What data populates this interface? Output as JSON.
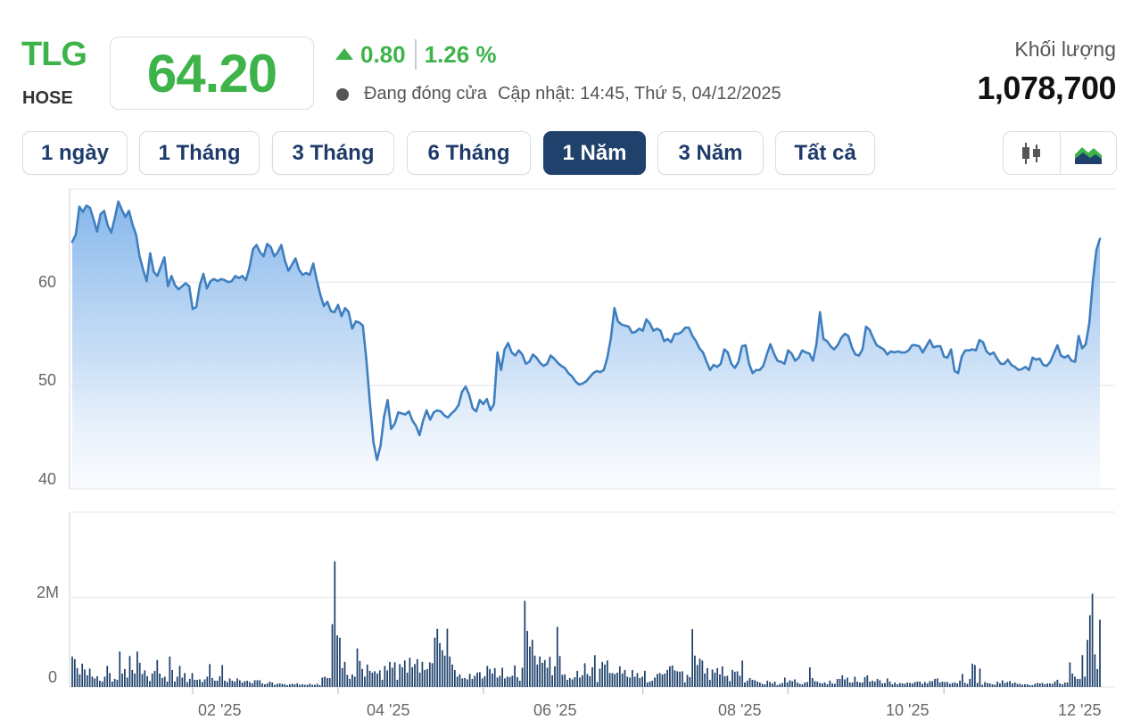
{
  "header": {
    "ticker": "TLG",
    "exchange": "HOSE",
    "price": "64.20",
    "change": "0.80",
    "change_pct": "1.26 %",
    "status": "Đang đóng cửa",
    "updated": "Cập nhật: 14:45, Thứ 5, 04/12/2025",
    "volume_label": "Khối lượng",
    "volume_value": "1,078,700"
  },
  "ranges": [
    "1 ngày",
    "1 Tháng",
    "3 Tháng",
    "6 Tháng",
    "1 Năm",
    "3 Năm",
    "Tất cả"
  ],
  "active_range": "1 Năm",
  "chart_type_toggle": [
    {
      "icon": "candlestick-icon",
      "active": false
    },
    {
      "icon": "area-chart-icon",
      "active": true
    }
  ],
  "colors": {
    "up": "#3db34a",
    "line": "#3f7fbf",
    "area_top": "#7fb3ea",
    "volume_bar": "#1f416c",
    "active_button": "#1f416c"
  },
  "chart_data": [
    {
      "type": "area",
      "title": "",
      "ylim": [
        40,
        69
      ],
      "yticks": [
        "60",
        "50",
        "40"
      ],
      "ytick_values": [
        60,
        50,
        40
      ],
      "grid": true,
      "xtick_labels": [
        "02 '25",
        "04 '25",
        "06 '25",
        "08 '25",
        "10 '25",
        "12 '25"
      ],
      "xtick_indices": [
        34,
        75,
        116,
        161,
        202,
        246
      ],
      "series": [
        {
          "values": [
            63.9,
            64.6,
            67.3,
            66.8,
            67.4,
            67.2,
            66.1,
            64.9,
            66.6,
            66.9,
            65.5,
            64.8,
            66.2,
            67.8,
            67.0,
            66.3,
            66.9,
            65.6,
            64.6,
            62.5,
            61.2,
            60.1,
            62.8,
            61.0,
            60.6,
            61.5,
            62.4,
            59.6,
            60.6,
            59.7,
            59.3,
            59.6,
            59.9,
            59.6,
            57.4,
            57.6,
            59.7,
            60.8,
            59.4,
            60.1,
            60.3,
            60.1,
            60.3,
            60.2,
            60.0,
            60.1,
            60.6,
            60.4,
            60.6,
            60.2,
            61.4,
            63.2,
            63.6,
            62.9,
            62.5,
            63.7,
            63.4,
            62.5,
            62.9,
            63.6,
            62.1,
            61.1,
            61.7,
            62.3,
            61.2,
            60.7,
            60.9,
            60.7,
            61.8,
            60.2,
            58.8,
            57.7,
            58.1,
            57.2,
            57.1,
            57.8,
            56.7,
            57.5,
            57.1,
            55.5,
            56.2,
            56.1,
            55.8,
            52.5,
            48.3,
            44.5,
            42.8,
            44.2,
            47.0,
            48.6,
            45.8,
            46.3,
            47.4,
            47.3,
            47.2,
            47.5,
            46.6,
            46.1,
            45.2,
            46.6,
            47.6,
            46.7,
            47.4,
            47.6,
            47.5,
            47.1,
            46.9,
            47.3,
            47.6,
            48.1,
            49.4,
            49.9,
            49.1,
            47.8,
            47.5,
            48.6,
            48.2,
            48.7,
            47.6,
            48.2,
            53.2,
            51.5,
            53.5,
            54.1,
            53.2,
            52.9,
            53.4,
            53.0,
            52.1,
            52.3,
            53.0,
            52.7,
            52.2,
            51.9,
            52.1,
            52.9,
            52.6,
            52.2,
            51.9,
            51.7,
            51.2,
            50.9,
            50.4,
            50.1,
            50.2,
            50.4,
            50.8,
            51.2,
            51.4,
            51.3,
            51.5,
            52.7,
            54.6,
            57.5,
            56.2,
            55.9,
            55.8,
            55.7,
            55.1,
            55.2,
            55.5,
            55.3,
            56.4,
            56.0,
            55.3,
            55.5,
            55.3,
            54.3,
            54.5,
            54.2,
            55.0,
            55.0,
            55.2,
            55.6,
            55.6,
            54.8,
            54.3,
            53.6,
            53.2,
            52.3,
            51.5,
            52.0,
            51.8,
            52.1,
            53.5,
            53.2,
            52.1,
            51.7,
            52.3,
            53.8,
            53.9,
            52.1,
            51.2,
            51.5,
            51.5,
            51.9,
            53.0,
            54.0,
            53.1,
            52.4,
            52.3,
            52.1,
            53.4,
            53.1,
            52.4,
            52.7,
            53.4,
            53.2,
            53.1,
            52.4,
            54.0,
            57.1,
            54.5,
            54.3,
            53.8,
            53.5,
            53.9,
            54.6,
            55.0,
            54.8,
            53.7,
            53.0,
            52.9,
            53.5,
            55.7,
            55.4,
            54.6,
            53.9,
            53.7,
            53.5,
            53.0,
            53.3,
            53.2,
            53.3,
            53.2,
            53.2,
            53.4,
            53.9,
            53.9,
            53.8,
            53.2,
            53.8,
            54.4,
            53.7,
            53.8,
            53.8,
            52.8,
            52.7,
            53.5,
            51.4,
            51.2,
            52.8,
            53.4,
            53.4,
            53.5,
            53.4,
            54.4,
            54.2,
            53.3,
            53.0,
            53.2,
            52.6,
            52.1,
            52.1,
            52.5,
            52.0,
            51.8,
            51.5,
            51.6,
            51.8,
            51.5,
            52.7,
            52.5,
            52.6,
            52.0,
            51.9,
            52.3,
            53.1,
            53.9,
            52.9,
            52.7,
            52.9,
            52.4,
            52.3,
            54.8,
            53.6,
            54.0,
            56.0,
            60.1,
            63.1,
            64.2
          ]
        }
      ]
    },
    {
      "type": "bar",
      "title": "",
      "ylim": [
        0,
        3900000
      ],
      "yticks": [
        "2M",
        "0"
      ],
      "ytick_values": [
        2000000,
        0
      ],
      "grid": true,
      "xtick_labels": [
        "02 '25",
        "04 '25",
        "06 '25",
        "08 '25",
        "10 '25",
        "12 '25"
      ],
      "series": [
        {
          "values": [
            680000,
            620000,
            420000,
            280000,
            520000,
            390000,
            260000,
            410000,
            230000,
            190000,
            240000,
            140000,
            120000,
            230000,
            470000,
            310000,
            120000,
            180000,
            160000,
            790000,
            300000,
            400000,
            210000,
            690000,
            380000,
            300000,
            790000,
            540000,
            290000,
            370000,
            240000,
            130000,
            300000,
            360000,
            600000,
            300000,
            200000,
            230000,
            120000,
            680000,
            380000,
            120000,
            230000,
            470000,
            210000,
            310000,
            110000,
            180000,
            310000,
            160000,
            160000,
            170000,
            110000,
            170000,
            230000,
            510000,
            200000,
            140000,
            140000,
            240000,
            490000,
            140000,
            110000,
            190000,
            140000,
            120000,
            190000,
            150000,
            100000,
            130000,
            140000,
            110000,
            80000,
            150000,
            150000,
            150000,
            80000,
            60000,
            80000,
            120000,
            100000,
            50000,
            70000,
            80000,
            70000,
            60000,
            40000,
            60000,
            70000,
            60000,
            80000,
            50000,
            60000,
            50000,
            50000,
            70000,
            50000,
            50000,
            70000,
            40000,
            210000,
            230000,
            200000,
            200000,
            1400000,
            2800000,
            1150000,
            1100000,
            420000,
            560000,
            270000,
            180000,
            280000,
            230000,
            860000,
            580000,
            400000,
            230000,
            500000,
            360000,
            320000,
            350000,
            300000,
            370000,
            160000,
            470000,
            370000,
            560000,
            430000,
            550000,
            160000,
            510000,
            440000,
            590000,
            320000,
            650000,
            440000,
            510000,
            620000,
            320000,
            560000,
            380000,
            400000,
            550000,
            530000,
            1100000,
            1300000,
            980000,
            820000,
            700000,
            1300000,
            680000,
            500000,
            380000,
            230000,
            280000,
            190000,
            200000,
            170000,
            290000,
            180000,
            250000,
            320000,
            330000,
            190000,
            240000,
            470000,
            400000,
            300000,
            420000,
            210000,
            250000,
            430000,
            190000,
            230000,
            220000,
            250000,
            480000,
            220000,
            140000,
            430000,
            1920000,
            1250000,
            900000,
            1050000,
            700000,
            500000,
            680000,
            540000,
            600000,
            430000,
            670000,
            260000,
            460000,
            1340000,
            690000,
            270000,
            280000,
            160000,
            200000,
            170000,
            220000,
            360000,
            210000,
            260000,
            530000,
            290000,
            240000,
            440000,
            710000,
            110000,
            410000,
            560000,
            500000,
            590000,
            310000,
            310000,
            290000,
            320000,
            460000,
            300000,
            380000,
            230000,
            210000,
            380000,
            230000,
            310000,
            200000,
            230000,
            360000,
            100000,
            120000,
            140000,
            210000,
            290000,
            310000,
            280000,
            300000,
            380000,
            460000,
            480000,
            370000,
            350000,
            340000,
            350000,
            100000,
            270000,
            220000,
            1290000,
            700000,
            490000,
            630000,
            590000,
            300000,
            420000,
            160000,
            390000,
            320000,
            420000,
            280000,
            460000,
            240000,
            250000,
            130000,
            380000,
            340000,
            350000,
            250000,
            590000,
            100000,
            140000,
            200000,
            160000,
            150000,
            120000,
            100000,
            70000,
            60000,
            140000,
            110000,
            80000,
            120000,
            40000,
            70000,
            90000,
            210000,
            100000,
            150000,
            130000,
            170000,
            100000,
            70000,
            60000,
            100000,
            110000,
            440000,
            200000,
            130000,
            120000,
            90000,
            80000,
            100000,
            60000,
            140000,
            80000,
            70000,
            180000,
            180000,
            260000,
            170000,
            210000,
            100000,
            100000,
            230000,
            120000,
            100000,
            100000,
            220000,
            260000,
            120000,
            140000,
            120000,
            180000,
            150000,
            80000,
            90000,
            190000,
            120000,
            60000,
            100000,
            60000,
            90000,
            80000,
            70000,
            100000,
            90000,
            80000,
            110000,
            120000,
            120000,
            70000,
            110000,
            80000,
            130000,
            130000,
            180000,
            190000,
            100000,
            120000,
            110000,
            110000,
            70000,
            90000,
            100000,
            80000,
            140000,
            290000,
            90000,
            70000,
            180000,
            520000,
            490000,
            90000,
            410000,
            50000,
            110000,
            90000,
            80000,
            60000,
            50000,
            120000,
            80000,
            150000,
            90000,
            110000,
            130000,
            80000,
            100000,
            70000,
            70000,
            50000,
            60000,
            60000,
            40000,
            40000,
            70000,
            90000,
            80000,
            90000,
            60000,
            80000,
            80000,
            70000,
            120000,
            160000,
            80000,
            60000,
            100000,
            100000,
            550000,
            300000,
            230000,
            180000,
            180000,
            710000,
            230000,
            1050000,
            1600000,
            2080000,
            730000,
            400000,
            1500000
          ]
        }
      ]
    }
  ]
}
